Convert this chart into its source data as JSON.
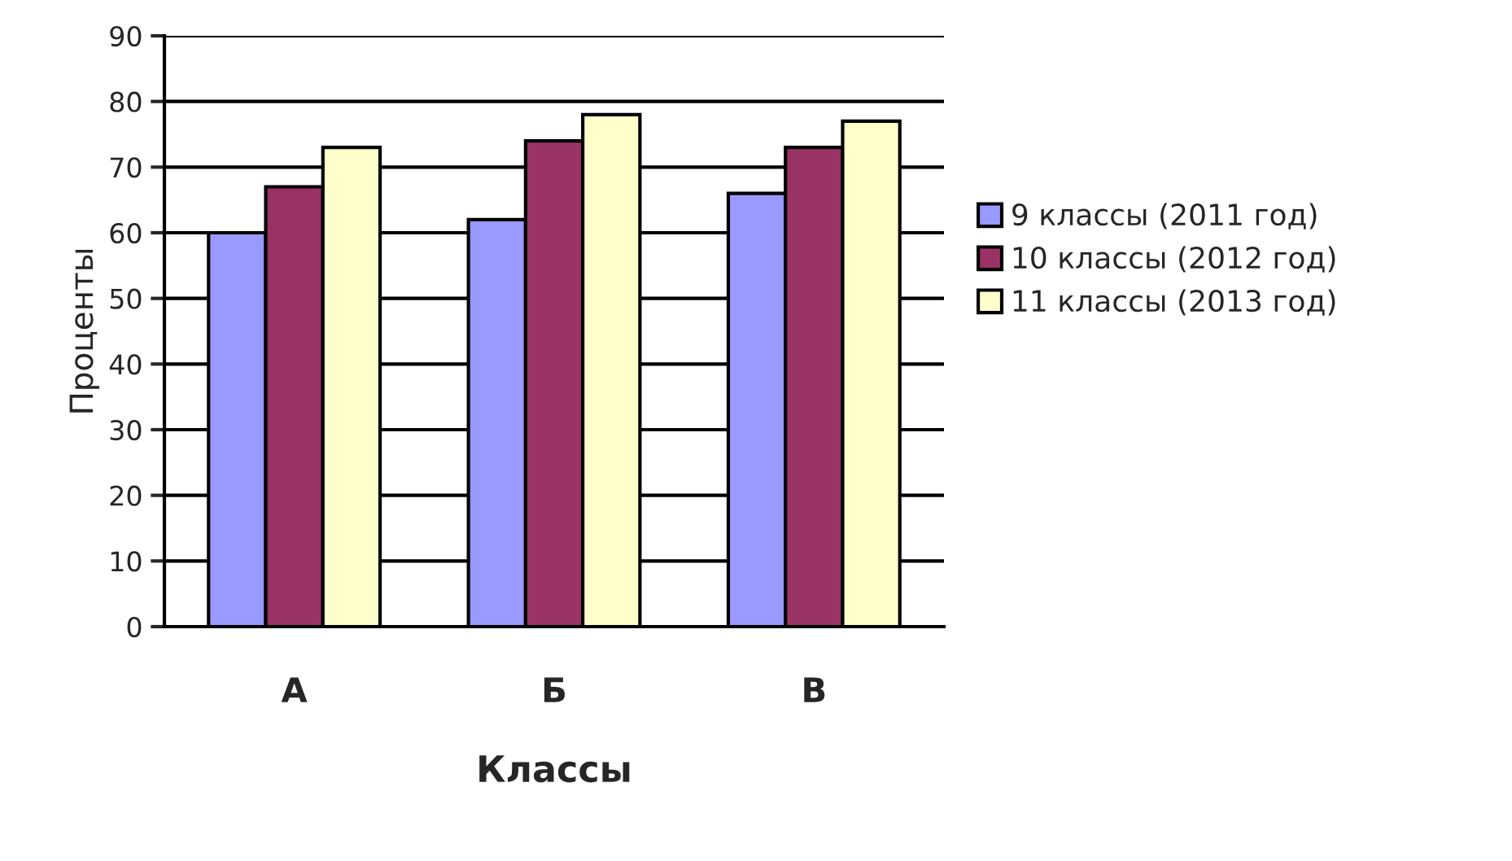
{
  "chart_data": {
    "type": "bar",
    "xlabel": "Классы",
    "ylabel": "Проценты",
    "categories": [
      "А",
      "Б",
      "В"
    ],
    "series": [
      {
        "name": "9 классы (2011 год)",
        "color": "#9999ff",
        "values": [
          60,
          62,
          66
        ]
      },
      {
        "name": "10 классы (2012 год)",
        "color": "#993366",
        "values": [
          67,
          74,
          73
        ]
      },
      {
        "name": "11 классы (2013 год)",
        "color": "#ffffcc",
        "values": [
          73,
          78,
          77
        ]
      }
    ],
    "ylim": [
      0,
      90
    ],
    "yticks": [
      0,
      10,
      20,
      30,
      40,
      50,
      60,
      70,
      80,
      90
    ],
    "grid": "y",
    "legend": "right"
  }
}
